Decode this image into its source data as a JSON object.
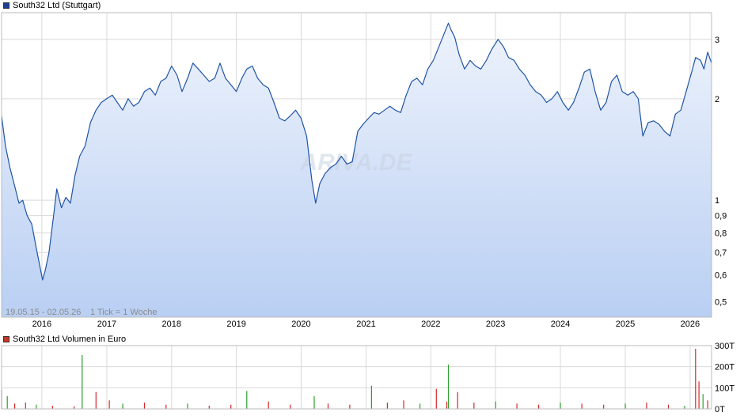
{
  "legend": {
    "price_label": "South32 Ltd (Stuttgart)",
    "price_color": "#1c3f94",
    "volume_label": "South32 Ltd Volumen in Euro",
    "volume_color": "#c0392b"
  },
  "info": {
    "range": "19.05.15 - 02.05.26",
    "tick": "1 Tick = 1 Woche"
  },
  "watermark": "ARIVA.DE",
  "colors": {
    "line": "#1f54a6",
    "fill_top": "#eef3fc",
    "fill_bottom": "#b9cff3",
    "grid": "#d9d9d9",
    "vol_up": "#2ca02c",
    "vol_down": "#d62728"
  },
  "chart_data": [
    {
      "type": "line",
      "title": "South32 Ltd (Stuttgart)",
      "y_scale": "log",
      "ylim": [
        0.45,
        3.6
      ],
      "xlim": [
        "2015-05-19",
        "2026-05-02"
      ],
      "y_ticks": [
        {
          "value": 0.5,
          "label": "0,5"
        },
        {
          "value": 0.6,
          "label": "0,6"
        },
        {
          "value": 0.7,
          "label": "0,7"
        },
        {
          "value": 0.8,
          "label": "0,8"
        },
        {
          "value": 0.9,
          "label": "0,9"
        },
        {
          "value": 1,
          "label": "1"
        },
        {
          "value": 2,
          "label": "2"
        },
        {
          "value": 3,
          "label": "3"
        }
      ],
      "x_ticks": [
        "2016",
        "2017",
        "2018",
        "2019",
        "2020",
        "2021",
        "2022",
        "2023",
        "2024",
        "2025",
        "2026"
      ],
      "grid": true,
      "series": [
        {
          "name": "South32 Ltd (Stuttgart)",
          "points": [
            [
              "2015-05-19",
              1.78
            ],
            [
              "2015-06-10",
              1.45
            ],
            [
              "2015-07-05",
              1.25
            ],
            [
              "2015-08-01",
              1.1
            ],
            [
              "2015-08-25",
              0.98
            ],
            [
              "2015-09-15",
              1.0
            ],
            [
              "2015-10-10",
              0.9
            ],
            [
              "2015-11-05",
              0.85
            ],
            [
              "2015-12-01",
              0.72
            ],
            [
              "2016-01-05",
              0.58
            ],
            [
              "2016-01-20",
              0.62
            ],
            [
              "2016-02-10",
              0.7
            ],
            [
              "2016-03-05",
              0.88
            ],
            [
              "2016-03-25",
              1.08
            ],
            [
              "2016-04-20",
              0.95
            ],
            [
              "2016-05-15",
              1.02
            ],
            [
              "2016-06-10",
              0.98
            ],
            [
              "2016-07-05",
              1.18
            ],
            [
              "2016-08-01",
              1.35
            ],
            [
              "2016-09-01",
              1.45
            ],
            [
              "2016-10-01",
              1.7
            ],
            [
              "2016-11-01",
              1.85
            ],
            [
              "2016-12-01",
              1.95
            ],
            [
              "2017-01-01",
              2.0
            ],
            [
              "2017-02-01",
              2.05
            ],
            [
              "2017-03-01",
              1.95
            ],
            [
              "2017-04-01",
              1.85
            ],
            [
              "2017-05-01",
              2.0
            ],
            [
              "2017-06-01",
              1.9
            ],
            [
              "2017-07-01",
              1.95
            ],
            [
              "2017-08-01",
              2.1
            ],
            [
              "2017-09-01",
              2.15
            ],
            [
              "2017-10-01",
              2.05
            ],
            [
              "2017-11-01",
              2.25
            ],
            [
              "2017-12-01",
              2.3
            ],
            [
              "2018-01-01",
              2.5
            ],
            [
              "2018-02-01",
              2.35
            ],
            [
              "2018-03-01",
              2.1
            ],
            [
              "2018-04-01",
              2.3
            ],
            [
              "2018-05-01",
              2.55
            ],
            [
              "2018-06-01",
              2.45
            ],
            [
              "2018-07-01",
              2.35
            ],
            [
              "2018-08-01",
              2.25
            ],
            [
              "2018-09-01",
              2.3
            ],
            [
              "2018-10-01",
              2.55
            ],
            [
              "2018-11-01",
              2.3
            ],
            [
              "2018-12-01",
              2.2
            ],
            [
              "2019-01-01",
              2.1
            ],
            [
              "2019-02-01",
              2.3
            ],
            [
              "2019-03-01",
              2.45
            ],
            [
              "2019-04-01",
              2.5
            ],
            [
              "2019-05-01",
              2.3
            ],
            [
              "2019-06-01",
              2.2
            ],
            [
              "2019-07-01",
              2.15
            ],
            [
              "2019-08-01",
              1.95
            ],
            [
              "2019-09-01",
              1.75
            ],
            [
              "2019-10-01",
              1.72
            ],
            [
              "2019-11-01",
              1.78
            ],
            [
              "2019-12-01",
              1.85
            ],
            [
              "2020-01-01",
              1.75
            ],
            [
              "2020-02-01",
              1.55
            ],
            [
              "2020-03-01",
              1.15
            ],
            [
              "2020-03-23",
              0.98
            ],
            [
              "2020-04-15",
              1.12
            ],
            [
              "2020-05-15",
              1.2
            ],
            [
              "2020-06-15",
              1.25
            ],
            [
              "2020-07-15",
              1.28
            ],
            [
              "2020-08-15",
              1.35
            ],
            [
              "2020-09-15",
              1.28
            ],
            [
              "2020-10-15",
              1.3
            ],
            [
              "2020-11-15",
              1.6
            ],
            [
              "2020-12-15",
              1.68
            ],
            [
              "2021-01-15",
              1.75
            ],
            [
              "2021-02-15",
              1.82
            ],
            [
              "2021-03-15",
              1.8
            ],
            [
              "2021-04-15",
              1.85
            ],
            [
              "2021-05-15",
              1.9
            ],
            [
              "2021-06-15",
              1.85
            ],
            [
              "2021-07-15",
              1.82
            ],
            [
              "2021-08-15",
              2.05
            ],
            [
              "2021-09-15",
              2.25
            ],
            [
              "2021-10-15",
              2.3
            ],
            [
              "2021-11-15",
              2.2
            ],
            [
              "2021-12-15",
              2.45
            ],
            [
              "2022-01-15",
              2.6
            ],
            [
              "2022-02-15",
              2.85
            ],
            [
              "2022-03-15",
              3.1
            ],
            [
              "2022-04-10",
              3.35
            ],
            [
              "2022-04-25",
              3.2
            ],
            [
              "2022-05-15",
              3.05
            ],
            [
              "2022-06-10",
              2.7
            ],
            [
              "2022-07-10",
              2.45
            ],
            [
              "2022-08-10",
              2.6
            ],
            [
              "2022-09-10",
              2.5
            ],
            [
              "2022-10-10",
              2.45
            ],
            [
              "2022-11-10",
              2.6
            ],
            [
              "2022-12-10",
              2.8
            ],
            [
              "2023-01-15",
              3.0
            ],
            [
              "2023-02-15",
              2.85
            ],
            [
              "2023-03-15",
              2.65
            ],
            [
              "2023-04-15",
              2.6
            ],
            [
              "2023-05-15",
              2.45
            ],
            [
              "2023-06-15",
              2.35
            ],
            [
              "2023-07-15",
              2.2
            ],
            [
              "2023-08-15",
              2.1
            ],
            [
              "2023-09-15",
              2.05
            ],
            [
              "2023-10-15",
              1.95
            ],
            [
              "2023-11-15",
              2.0
            ],
            [
              "2023-12-15",
              2.1
            ],
            [
              "2024-01-15",
              1.95
            ],
            [
              "2024-02-15",
              1.85
            ],
            [
              "2024-03-15",
              1.95
            ],
            [
              "2024-04-15",
              2.15
            ],
            [
              "2024-05-15",
              2.4
            ],
            [
              "2024-06-15",
              2.45
            ],
            [
              "2024-07-15",
              2.1
            ],
            [
              "2024-08-15",
              1.85
            ],
            [
              "2024-09-15",
              1.95
            ],
            [
              "2024-10-15",
              2.25
            ],
            [
              "2024-11-15",
              2.35
            ],
            [
              "2024-12-15",
              2.1
            ],
            [
              "2025-01-15",
              2.05
            ],
            [
              "2025-02-15",
              2.1
            ],
            [
              "2025-03-15",
              2.0
            ],
            [
              "2025-04-10",
              1.55
            ],
            [
              "2025-05-10",
              1.7
            ],
            [
              "2025-06-10",
              1.72
            ],
            [
              "2025-07-10",
              1.68
            ],
            [
              "2025-08-10",
              1.6
            ],
            [
              "2025-09-10",
              1.55
            ],
            [
              "2025-10-10",
              1.8
            ],
            [
              "2025-11-10",
              1.85
            ],
            [
              "2025-12-10",
              2.1
            ],
            [
              "2026-01-10",
              2.4
            ],
            [
              "2026-02-01",
              2.65
            ],
            [
              "2026-03-01",
              2.6
            ],
            [
              "2026-03-20",
              2.45
            ],
            [
              "2026-04-10",
              2.75
            ],
            [
              "2026-05-02",
              2.55
            ]
          ]
        }
      ]
    },
    {
      "type": "bar",
      "title": "South32 Ltd Volumen in Euro",
      "ylim": [
        0,
        300
      ],
      "y_ticks": [
        {
          "value": 0,
          "label": "0T"
        },
        {
          "value": 100,
          "label": "100T"
        },
        {
          "value": 200,
          "label": "200T"
        },
        {
          "value": 300,
          "label": "300T"
        }
      ],
      "x_ticks": [
        "2016",
        "2017",
        "2018",
        "2019",
        "2020",
        "2021",
        "2022",
        "2023",
        "2024",
        "2025",
        "2026"
      ],
      "grid": true,
      "series": [
        {
          "name": "South32 Ltd Volumen in Euro",
          "points": [
            [
              "2015-05-19",
              90
            ],
            [
              "2015-06-20",
              60
            ],
            [
              "2015-08-01",
              25
            ],
            [
              "2015-10-01",
              30
            ],
            [
              "2015-12-01",
              20
            ],
            [
              "2016-03-01",
              15
            ],
            [
              "2016-07-01",
              12
            ],
            [
              "2016-08-15",
              255
            ],
            [
              "2016-11-01",
              80
            ],
            [
              "2017-01-15",
              40
            ],
            [
              "2017-04-01",
              25
            ],
            [
              "2017-08-01",
              30
            ],
            [
              "2017-12-01",
              20
            ],
            [
              "2018-04-01",
              25
            ],
            [
              "2018-08-01",
              15
            ],
            [
              "2018-12-01",
              20
            ],
            [
              "2019-03-01",
              85
            ],
            [
              "2019-07-01",
              35
            ],
            [
              "2019-11-01",
              20
            ],
            [
              "2020-03-15",
              60
            ],
            [
              "2020-06-01",
              25
            ],
            [
              "2020-10-01",
              20
            ],
            [
              "2021-02-01",
              110
            ],
            [
              "2021-05-01",
              30
            ],
            [
              "2021-08-01",
              40
            ],
            [
              "2021-11-01",
              25
            ],
            [
              "2022-02-01",
              95
            ],
            [
              "2022-04-01",
              35
            ],
            [
              "2022-04-10",
              210
            ],
            [
              "2022-06-01",
              80
            ],
            [
              "2022-09-01",
              30
            ],
            [
              "2023-01-01",
              35
            ],
            [
              "2023-05-01",
              25
            ],
            [
              "2023-09-01",
              20
            ],
            [
              "2024-01-01",
              30
            ],
            [
              "2024-05-01",
              25
            ],
            [
              "2024-09-01",
              20
            ],
            [
              "2025-01-01",
              25
            ],
            [
              "2025-05-01",
              30
            ],
            [
              "2025-09-01",
              20
            ],
            [
              "2025-12-01",
              15
            ],
            [
              "2026-02-01",
              285
            ],
            [
              "2026-02-20",
              130
            ],
            [
              "2026-03-15",
              70
            ],
            [
              "2026-04-10",
              40
            ]
          ]
        }
      ]
    }
  ]
}
